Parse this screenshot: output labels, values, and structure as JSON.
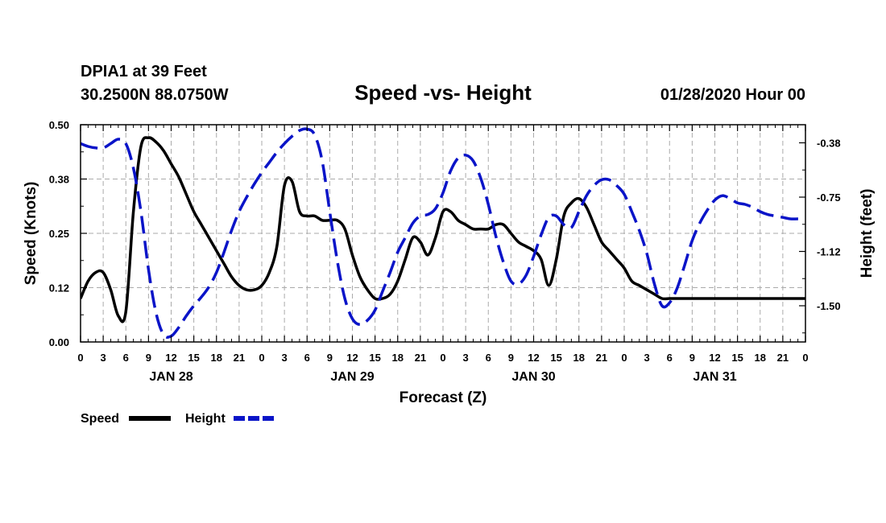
{
  "header": {
    "station": "DPIA1 at 39 Feet",
    "coordinates": "30.2500N 88.0750W",
    "title": "Speed -vs- Height",
    "datetime": "01/28/2020 Hour 00"
  },
  "chart_data": {
    "type": "line",
    "title": "Speed -vs- Height",
    "xlabel": "Forecast (Z)",
    "ylabel_left": "Speed (Knots)",
    "ylabel_right": "Height (feet)",
    "x_unit": "hours from 01/28/2020 00Z",
    "xlim": [
      0,
      96
    ],
    "ylim_left": [
      0,
      0.5
    ],
    "ylim_right": [
      -1.75,
      -0.25
    ],
    "yticks_left": [
      "0.00",
      "0.12",
      "0.25",
      "0.38",
      "0.50"
    ],
    "yticks_left_values": [
      0,
      0.125,
      0.25,
      0.375,
      0.5
    ],
    "yticks_right": [
      "-0.38",
      "-0.75",
      "-1.12",
      "-1.50"
    ],
    "yticks_right_values": [
      -0.375,
      -0.75,
      -1.125,
      -1.5
    ],
    "xtick_labels": [
      "0",
      "3",
      "6",
      "9",
      "12",
      "15",
      "18",
      "21",
      "0",
      "3",
      "6",
      "9",
      "12",
      "15",
      "18",
      "21",
      "0",
      "3",
      "6",
      "9",
      "12",
      "15",
      "18",
      "21",
      "0",
      "3",
      "6",
      "9",
      "12",
      "15",
      "18",
      "21",
      "0"
    ],
    "day_labels": [
      {
        "label": "JAN 28",
        "hour": 12
      },
      {
        "label": "JAN 29",
        "hour": 36
      },
      {
        "label": "JAN 30",
        "hour": 60
      },
      {
        "label": "JAN 31",
        "hour": 84
      }
    ],
    "grid": true,
    "legend_position": "bottom-left",
    "series": [
      {
        "name": "Speed",
        "axis": "left",
        "color": "#000000",
        "style": "solid",
        "x": [
          0,
          1,
          2,
          3,
          4,
          5,
          6,
          7,
          8,
          9,
          10,
          11,
          12,
          13,
          14,
          15,
          16,
          17,
          18,
          19,
          20,
          21,
          22,
          23,
          24,
          25,
          26,
          27,
          28,
          29,
          30,
          31,
          32,
          33,
          34,
          35,
          36,
          37,
          38,
          39,
          40,
          41,
          42,
          43,
          44,
          45,
          46,
          47,
          48,
          49,
          50,
          51,
          52,
          53,
          54,
          55,
          56,
          57,
          58,
          59,
          60,
          61,
          62,
          63,
          64,
          65,
          66,
          67,
          68,
          69,
          70,
          71,
          72,
          73,
          74,
          75,
          76,
          77,
          78,
          79,
          80,
          81,
          82,
          83,
          84,
          85,
          86,
          87,
          88,
          89,
          90,
          91,
          92,
          93,
          94,
          95,
          96
        ],
        "values": [
          0.1,
          0.14,
          0.16,
          0.16,
          0.12,
          0.06,
          0.07,
          0.3,
          0.45,
          0.47,
          0.46,
          0.44,
          0.41,
          0.38,
          0.34,
          0.3,
          0.27,
          0.24,
          0.21,
          0.18,
          0.15,
          0.13,
          0.12,
          0.12,
          0.13,
          0.16,
          0.22,
          0.36,
          0.37,
          0.3,
          0.29,
          0.29,
          0.28,
          0.28,
          0.28,
          0.26,
          0.2,
          0.15,
          0.12,
          0.1,
          0.1,
          0.11,
          0.14,
          0.19,
          0.24,
          0.23,
          0.2,
          0.24,
          0.3,
          0.3,
          0.28,
          0.27,
          0.26,
          0.26,
          0.26,
          0.27,
          0.27,
          0.25,
          0.23,
          0.22,
          0.21,
          0.19,
          0.13,
          0.19,
          0.29,
          0.32,
          0.33,
          0.31,
          0.27,
          0.23,
          0.21,
          0.19,
          0.17,
          0.14,
          0.13,
          0.12,
          0.11,
          0.1,
          0.1,
          0.1,
          0.1,
          0.1,
          0.1,
          0.1,
          0.1,
          0.1,
          0.1,
          0.1,
          0.1,
          0.1,
          0.1,
          0.1,
          0.1,
          0.1,
          0.1,
          0.1,
          0.1
        ]
      },
      {
        "name": "Height",
        "axis": "right",
        "color": "#0a14c8",
        "style": "dashed",
        "x": [
          0,
          1,
          2,
          3,
          4,
          5,
          6,
          7,
          8,
          9,
          10,
          11,
          12,
          13,
          14,
          15,
          16,
          17,
          18,
          19,
          20,
          21,
          22,
          23,
          24,
          25,
          26,
          27,
          28,
          29,
          30,
          31,
          32,
          33,
          34,
          35,
          36,
          37,
          38,
          39,
          40,
          41,
          42,
          43,
          44,
          45,
          46,
          47,
          48,
          49,
          50,
          51,
          52,
          53,
          54,
          55,
          56,
          57,
          58,
          59,
          60,
          61,
          62,
          63,
          64,
          65,
          66,
          67,
          68,
          69,
          70,
          71,
          72,
          73,
          74,
          75,
          76,
          77,
          78,
          79,
          80,
          81,
          82,
          83,
          84,
          85,
          86,
          87,
          88,
          89,
          90,
          91,
          92,
          93,
          94,
          95,
          96
        ],
        "values": [
          -0.38,
          -0.4,
          -0.41,
          -0.41,
          -0.38,
          -0.35,
          -0.38,
          -0.55,
          -0.85,
          -1.25,
          -1.55,
          -1.7,
          -1.71,
          -1.65,
          -1.57,
          -1.5,
          -1.44,
          -1.37,
          -1.27,
          -1.13,
          -0.98,
          -0.85,
          -0.75,
          -0.66,
          -0.58,
          -0.51,
          -0.44,
          -0.38,
          -0.33,
          -0.29,
          -0.28,
          -0.32,
          -0.5,
          -0.85,
          -1.19,
          -1.45,
          -1.59,
          -1.63,
          -1.6,
          -1.53,
          -1.4,
          -1.27,
          -1.13,
          -1.03,
          -0.93,
          -0.88,
          -0.87,
          -0.83,
          -0.72,
          -0.57,
          -0.48,
          -0.46,
          -0.5,
          -0.62,
          -0.8,
          -1.02,
          -1.2,
          -1.33,
          -1.35,
          -1.29,
          -1.16,
          -1.01,
          -0.89,
          -0.88,
          -0.94,
          -0.96,
          -0.85,
          -0.74,
          -0.67,
          -0.63,
          -0.63,
          -0.67,
          -0.73,
          -0.85,
          -0.98,
          -1.14,
          -1.35,
          -1.5,
          -1.48,
          -1.38,
          -1.22,
          -1.05,
          -0.93,
          -0.84,
          -0.77,
          -0.74,
          -0.76,
          -0.79,
          -0.8,
          -0.82,
          -0.85,
          -0.87,
          -0.88,
          -0.89,
          -0.9,
          -0.9,
          -0.9
        ]
      }
    ]
  },
  "legend": {
    "speed_label": "Speed",
    "height_label": "Height"
  }
}
